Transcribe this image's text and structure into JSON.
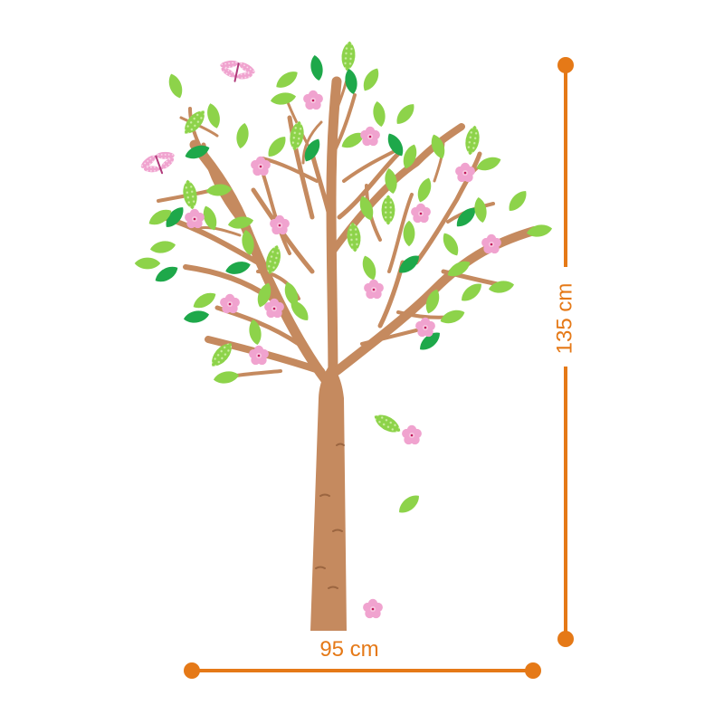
{
  "dimensions": {
    "width_label": "95 cm",
    "height_label": "135 cm"
  },
  "colors": {
    "background": "#ffffff",
    "measure": "#e57917",
    "trunk": "#c58a5f",
    "trunk_dark": "#9b6540",
    "leaf_light": "#8dd34a",
    "leaf_dark": "#1ea84a",
    "blossom": "#f0a3cf",
    "blossom_center": "#c2185b",
    "dragonfly": "#f0a3cf"
  }
}
